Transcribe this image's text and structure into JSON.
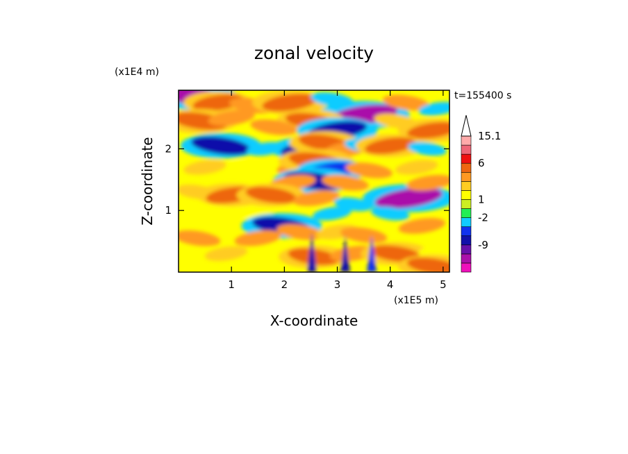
{
  "chart_data": {
    "type": "heatmap",
    "title": "zonal velocity",
    "xlabel": "X-coordinate",
    "ylabel": "Z-coordinate",
    "x_scale_label": "(x1E5 m)",
    "y_scale_label": "(x1E4 m)",
    "time_label": "t=155400 s",
    "xlim": [
      0,
      5.12
    ],
    "ylim": [
      0,
      2.95
    ],
    "x_ticks": [
      1,
      2,
      3,
      4,
      5
    ],
    "y_ticks": [
      1,
      2
    ],
    "colorbar": {
      "levels": [
        {
          "color": "#ee11bb"
        },
        {
          "color": "#aa11aa"
        },
        {
          "color": "#6611aa",
          "label": "-9"
        },
        {
          "color": "#1111aa"
        },
        {
          "color": "#1133ee"
        },
        {
          "color": "#11ccff",
          "label": "-2"
        },
        {
          "color": "#22ee55"
        },
        {
          "color": "#ccee22",
          "label": "1"
        },
        {
          "color": "#ffff00"
        },
        {
          "color": "#ffcc22"
        },
        {
          "color": "#ff9922"
        },
        {
          "color": "#ee6611",
          "label": "6"
        },
        {
          "color": "#ee1111"
        },
        {
          "color": "#ee6677"
        },
        {
          "color": "#ffaaaa",
          "label": "15.1"
        }
      ],
      "overflow_color": "#ffffff"
    },
    "features": [
      {
        "x": 0.3,
        "z": 2.85,
        "value": -8
      },
      {
        "x": 0.75,
        "z": 2.75,
        "value": 5
      },
      {
        "x": 1.4,
        "z": 2.7,
        "value": 4
      },
      {
        "x": 2.1,
        "z": 2.75,
        "value": 6
      },
      {
        "x": 2.9,
        "z": 2.8,
        "value": -3
      },
      {
        "x": 3.5,
        "z": 2.55,
        "value": -9
      },
      {
        "x": 4.3,
        "z": 2.75,
        "value": 4
      },
      {
        "x": 4.9,
        "z": 2.65,
        "value": -2
      },
      {
        "x": 0.4,
        "z": 2.45,
        "value": 6
      },
      {
        "x": 1.0,
        "z": 2.5,
        "value": 4
      },
      {
        "x": 2.5,
        "z": 2.45,
        "value": 5
      },
      {
        "x": 3.0,
        "z": 2.3,
        "value": -7
      },
      {
        "x": 4.1,
        "z": 2.45,
        "value": 3
      },
      {
        "x": 4.8,
        "z": 2.3,
        "value": 5
      },
      {
        "x": 0.8,
        "z": 2.05,
        "value": -7
      },
      {
        "x": 1.65,
        "z": 2.0,
        "value": -2
      },
      {
        "x": 1.8,
        "z": 2.35,
        "value": 4
      },
      {
        "x": 2.45,
        "z": 2.0,
        "value": -6
      },
      {
        "x": 2.75,
        "z": 2.1,
        "value": 5
      },
      {
        "x": 3.2,
        "z": 2.0,
        "value": 4
      },
      {
        "x": 3.5,
        "z": 2.05,
        "value": -2
      },
      {
        "x": 4.0,
        "z": 2.05,
        "value": 5
      },
      {
        "x": 4.7,
        "z": 2.0,
        "value": -2
      },
      {
        "x": 0.5,
        "z": 1.7,
        "value": 3
      },
      {
        "x": 1.3,
        "z": 1.7,
        "value": 2
      },
      {
        "x": 2.3,
        "z": 1.7,
        "value": 4
      },
      {
        "x": 2.6,
        "z": 1.8,
        "value": 6
      },
      {
        "x": 2.9,
        "z": 1.65,
        "value": -5
      },
      {
        "x": 3.6,
        "z": 1.65,
        "value": 4
      },
      {
        "x": 4.5,
        "z": 1.7,
        "value": 3
      },
      {
        "x": 2.55,
        "z": 1.48,
        "value": -7
      },
      {
        "x": 2.15,
        "z": 1.45,
        "value": 4
      },
      {
        "x": 3.15,
        "z": 1.45,
        "value": 4
      },
      {
        "x": 4.35,
        "z": 1.2,
        "value": -9
      },
      {
        "x": 4.0,
        "z": 0.95,
        "value": -2
      },
      {
        "x": 4.75,
        "z": 1.45,
        "value": 4
      },
      {
        "x": 0.35,
        "z": 1.3,
        "value": 3
      },
      {
        "x": 1.0,
        "z": 1.25,
        "value": 5
      },
      {
        "x": 1.75,
        "z": 1.25,
        "value": 5
      },
      {
        "x": 2.6,
        "z": 1.2,
        "value": 4
      },
      {
        "x": 3.3,
        "z": 1.1,
        "value": -2
      },
      {
        "x": 0.6,
        "z": 0.95,
        "value": 2
      },
      {
        "x": 1.45,
        "z": 0.95,
        "value": 2
      },
      {
        "x": 2.9,
        "z": 0.95,
        "value": -2
      },
      {
        "x": 1.95,
        "z": 0.75,
        "value": -7
      },
      {
        "x": 1.5,
        "z": 0.55,
        "value": 4
      },
      {
        "x": 2.3,
        "z": 0.65,
        "value": 4
      },
      {
        "x": 3.0,
        "z": 0.65,
        "value": 3
      },
      {
        "x": 3.5,
        "z": 0.6,
        "value": 4
      },
      {
        "x": 4.6,
        "z": 0.75,
        "value": 4
      },
      {
        "x": 0.35,
        "z": 0.55,
        "value": 4
      },
      {
        "x": 0.9,
        "z": 0.3,
        "value": 3
      },
      {
        "x": 2.55,
        "z": 0.25,
        "value": 5
      },
      {
        "x": 3.3,
        "z": 0.3,
        "value": 4
      },
      {
        "x": 4.1,
        "z": 0.3,
        "value": 5
      },
      {
        "x": 4.9,
        "z": 0.35,
        "value": 2
      },
      {
        "x": 4.8,
        "z": 0.1,
        "value": 5
      }
    ],
    "spikes": [
      {
        "x": 2.52,
        "top": 0.65,
        "value": -7
      },
      {
        "x": 3.15,
        "top": 0.6,
        "value": -6
      },
      {
        "x": 3.65,
        "top": 0.6,
        "value": -5
      }
    ]
  }
}
